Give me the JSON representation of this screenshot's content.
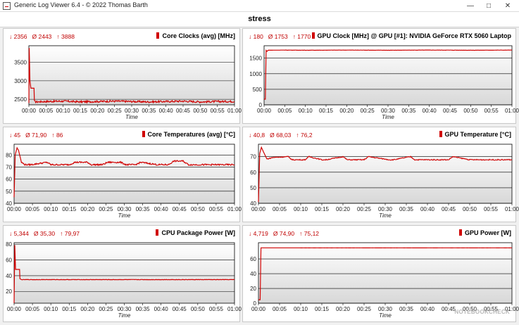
{
  "window": {
    "title": "Generic Log Viewer 6.4 - © 2022 Thomas Barth",
    "min_icon": "minimize-icon",
    "max_icon": "maximize-icon",
    "close_icon": "close-icon"
  },
  "header": {
    "title": "stress"
  },
  "watermark": "NOTEBOOKCHECK",
  "colors": {
    "series": "#d00000",
    "plot_bg_top": "#ffffff",
    "plot_bg_bottom": "#d8d8d8"
  },
  "charts": [
    {
      "title": "Core Clocks (avg) [MHz]",
      "stats": {
        "min": "↓ 2356",
        "avg": "Ø 2443",
        "max": "↑ 3888"
      },
      "xlabel": "Time"
    },
    {
      "title": "GPU Clock [MHz] @ GPU [#1]: NVIDIA GeForce RTX 5060 Laptop",
      "stats": {
        "min": "↓ 180",
        "avg": "Ø 1753",
        "max": "↑ 1770"
      },
      "xlabel": "Time"
    },
    {
      "title": "Core Temperatures (avg) [°C]",
      "stats": {
        "min": "↓ 45",
        "avg": "Ø 71,90",
        "max": "↑ 86"
      },
      "xlabel": "Time"
    },
    {
      "title": "GPU Temperature [°C]",
      "stats": {
        "min": "↓ 40,8",
        "avg": "Ø 68,03",
        "max": "↑ 76,2"
      },
      "xlabel": "Time"
    },
    {
      "title": "CPU Package Power [W]",
      "stats": {
        "min": "↓ 5,344",
        "avg": "Ø 35,30",
        "max": "↑ 79,97"
      },
      "xlabel": "Time"
    },
    {
      "title": "GPU Power [W]",
      "stats": {
        "min": "↓ 4,719",
        "avg": "Ø 74,90",
        "max": "↑ 75,12"
      },
      "xlabel": "Time"
    }
  ],
  "chart_data": [
    {
      "type": "line",
      "title": "Core Clocks (avg) [MHz]",
      "xlabel": "Time",
      "x_ticks": [
        "00:00",
        "00:05",
        "00:10",
        "00:15",
        "00:20",
        "00:25",
        "00:30",
        "00:35",
        "00:40",
        "00:45",
        "00:50",
        "00:55",
        "01:00"
      ],
      "y_ticks": [
        2500,
        3000,
        3500
      ],
      "ylim": [
        2350,
        3950
      ],
      "xlim": [
        0,
        60
      ],
      "series": [
        {
          "x": [
            0,
            0.1,
            0.3,
            0.6,
            1.5,
            1.6,
            2.0,
            5,
            10,
            15,
            20,
            25,
            30,
            35,
            40,
            45,
            50,
            55,
            60
          ],
          "y": [
            2400,
            3888,
            3000,
            2800,
            2800,
            2450,
            2430,
            2440,
            2450,
            2430,
            2440,
            2450,
            2440,
            2430,
            2440,
            2450,
            2430,
            2440,
            2440
          ],
          "noise": 25
        }
      ]
    },
    {
      "type": "line",
      "title": "GPU Clock [MHz] @ GPU [#1]: NVIDIA GeForce RTX 5060 Laptop",
      "xlabel": "Time",
      "x_ticks": [
        "00:00",
        "00:05",
        "00:10",
        "00:15",
        "00:20",
        "00:25",
        "00:30",
        "00:35",
        "00:40",
        "00:45",
        "00:50",
        "00:55",
        "01:00"
      ],
      "y_ticks": [
        0,
        500,
        1000,
        1500
      ],
      "ylim": [
        0,
        1900
      ],
      "xlim": [
        0,
        60
      ],
      "series": [
        {
          "x": [
            0,
            0.3,
            0.5,
            0.7,
            1.0,
            5,
            10,
            20,
            30,
            40,
            50,
            60
          ],
          "y": [
            180,
            180,
            1750,
            1720,
            1755,
            1760,
            1755,
            1760,
            1755,
            1760,
            1755,
            1760
          ],
          "noise": 4
        }
      ]
    },
    {
      "type": "line",
      "title": "Core Temperatures (avg) [°C]",
      "xlabel": "Time",
      "x_ticks": [
        "00:00",
        "00:05",
        "00:10",
        "00:15",
        "00:20",
        "00:25",
        "00:30",
        "00:35",
        "00:40",
        "00:45",
        "00:50",
        "00:55",
        "01:00"
      ],
      "y_ticks": [
        40,
        50,
        60,
        70,
        80
      ],
      "ylim": [
        40,
        89
      ],
      "xlim": [
        0,
        60
      ],
      "series": [
        {
          "x": [
            0,
            0.3,
            0.8,
            1.2,
            2.0,
            3.0,
            4.5,
            9,
            10,
            15,
            16.5,
            20,
            21,
            24,
            25.5,
            29,
            30.5,
            33,
            34.5,
            39,
            40,
            42,
            43.5,
            46,
            47.5,
            50,
            51,
            60
          ],
          "y": [
            45,
            80,
            86,
            84,
            74,
            72,
            72,
            74,
            72,
            72,
            74,
            74,
            72,
            72,
            74,
            74,
            72,
            72,
            74,
            72,
            72,
            72,
            75,
            75,
            72,
            72,
            72,
            72
          ],
          "noise": 0.6
        }
      ]
    },
    {
      "type": "line",
      "title": "GPU Temperature [°C]",
      "xlabel": "Time",
      "x_ticks": [
        "00:00",
        "00:05",
        "00:10",
        "00:15",
        "00:20",
        "00:25",
        "00:30",
        "00:35",
        "00:40",
        "00:45",
        "00:50",
        "00:55",
        "01:00"
      ],
      "y_ticks": [
        40,
        50,
        60,
        70
      ],
      "ylim": [
        40,
        78
      ],
      "xlim": [
        0,
        60
      ],
      "series": [
        {
          "x": [
            0,
            0.3,
            0.7,
            1.2,
            2.0,
            3.5,
            7,
            8,
            11,
            12,
            15,
            16,
            20,
            21,
            25,
            26,
            31,
            32,
            36,
            37,
            45,
            46,
            50,
            55,
            60
          ],
          "y": [
            40.8,
            72,
            76,
            73,
            68.5,
            69.5,
            70,
            68,
            68,
            70,
            68,
            68,
            70,
            68,
            68,
            70,
            68,
            68,
            70,
            68,
            68,
            70,
            68,
            68,
            68
          ],
          "noise": 0.3
        }
      ]
    },
    {
      "type": "line",
      "title": "CPU Package Power [W]",
      "xlabel": "Time",
      "x_ticks": [
        "00:00",
        "00:05",
        "00:10",
        "00:15",
        "00:20",
        "00:25",
        "00:30",
        "00:35",
        "00:40",
        "00:45",
        "00:50",
        "00:55",
        "01:00"
      ],
      "y_ticks": [
        20,
        40,
        60,
        80
      ],
      "ylim": [
        5,
        82
      ],
      "xlim": [
        0,
        60
      ],
      "series": [
        {
          "x": [
            0,
            0.2,
            0.4,
            1.5,
            1.6,
            2.0,
            10,
            20,
            30,
            40,
            50,
            60
          ],
          "y": [
            5.3,
            79,
            48,
            48,
            36,
            35,
            35,
            35,
            35,
            35,
            35,
            35
          ],
          "noise": 0.2
        }
      ]
    },
    {
      "type": "line",
      "title": "GPU Power [W]",
      "xlabel": "Time",
      "x_ticks": [
        "00:00",
        "00:05",
        "00:10",
        "00:15",
        "00:20",
        "00:25",
        "00:30",
        "00:35",
        "00:40",
        "00:45",
        "00:50",
        "00:55",
        "01:00"
      ],
      "y_ticks": [
        0,
        20,
        40,
        60
      ],
      "ylim": [
        0,
        82
      ],
      "xlim": [
        0,
        60
      ],
      "series": [
        {
          "x": [
            0,
            0.4,
            0.6,
            1,
            10,
            20,
            30,
            40,
            50,
            60
          ],
          "y": [
            4.7,
            4.7,
            75,
            75,
            75,
            75,
            75,
            75,
            75,
            75
          ],
          "noise": 0.05
        }
      ]
    }
  ]
}
